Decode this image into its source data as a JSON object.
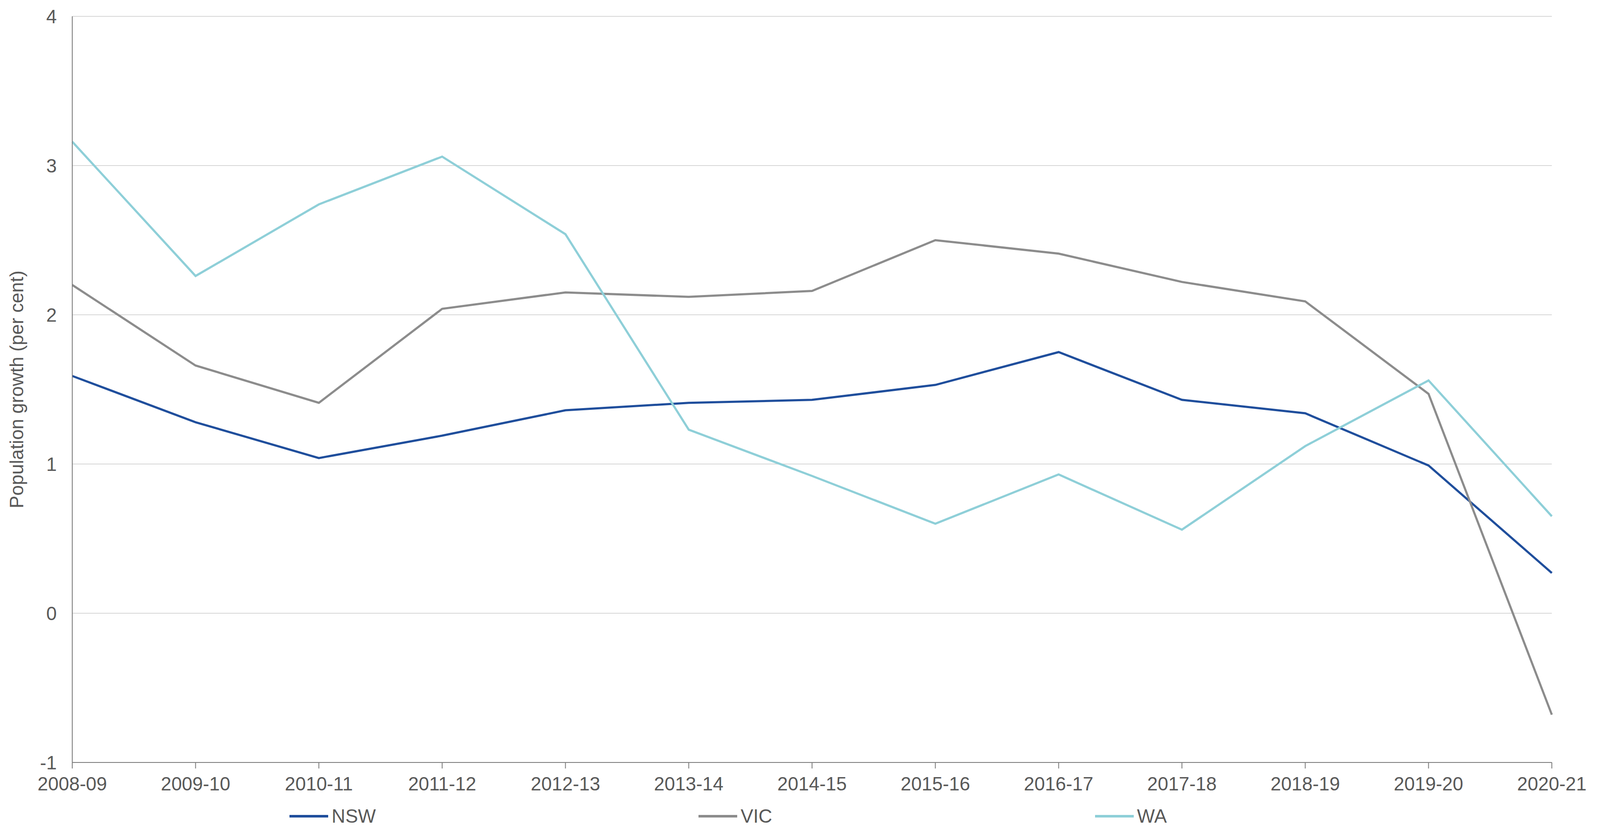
{
  "chart_data": {
    "type": "line",
    "y_label": "Population growth (per cent)",
    "categories": [
      "2008-09",
      "2009-10",
      "2010-11",
      "2011-12",
      "2012-13",
      "2013-14",
      "2014-15",
      "2015-16",
      "2016-17",
      "2017-18",
      "2018-19",
      "2019-20",
      "2020-21"
    ],
    "series": [
      {
        "name": "NSW",
        "color": "#1f4e9c",
        "values": [
          1.59,
          1.28,
          1.04,
          1.19,
          1.36,
          1.41,
          1.43,
          1.53,
          1.75,
          1.43,
          1.34,
          0.99,
          0.27
        ]
      },
      {
        "name": "VIC",
        "color": "#8c8c8c",
        "values": [
          2.2,
          1.66,
          1.41,
          2.04,
          2.15,
          2.12,
          2.16,
          2.5,
          2.41,
          2.22,
          2.09,
          1.47,
          -0.68
        ]
      },
      {
        "name": "WA",
        "color": "#8ecfd8",
        "values": [
          3.16,
          2.26,
          2.74,
          3.06,
          2.54,
          1.23,
          0.92,
          0.6,
          0.93,
          0.56,
          1.12,
          1.56,
          0.65
        ]
      }
    ],
    "ylim": [
      -1,
      4
    ],
    "yticks": [
      -1,
      0,
      1,
      2,
      3,
      4
    ],
    "grid": true,
    "legend": "bottom"
  }
}
